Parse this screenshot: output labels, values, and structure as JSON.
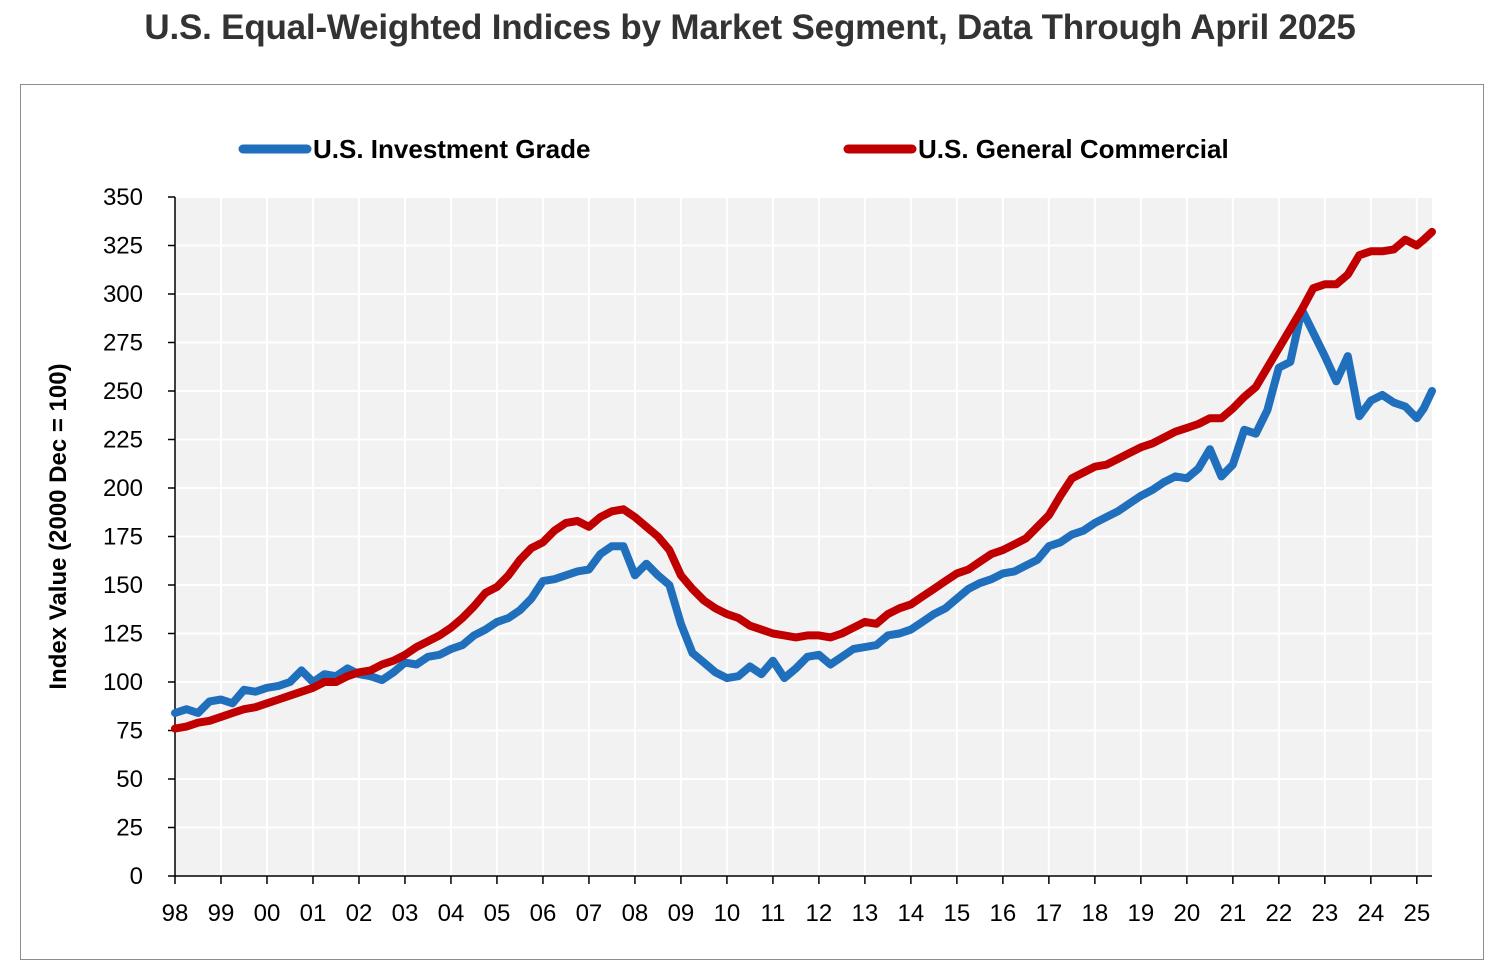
{
  "chart_data": {
    "type": "line",
    "title": "U.S. Equal-Weighted Indices by Market Segment, Data Through April 2025",
    "xlabel": "",
    "ylabel": "Index Value (2000 Dec = 100)",
    "ylim": [
      0,
      350
    ],
    "yticks": [
      0,
      25,
      50,
      75,
      100,
      125,
      150,
      175,
      200,
      225,
      250,
      275,
      300,
      325,
      350
    ],
    "xlim": [
      1998.0,
      2025.33
    ],
    "xtick_labels": [
      "98",
      "99",
      "00",
      "01",
      "02",
      "03",
      "04",
      "05",
      "06",
      "07",
      "08",
      "09",
      "10",
      "11",
      "12",
      "13",
      "14",
      "15",
      "16",
      "17",
      "18",
      "19",
      "20",
      "21",
      "22",
      "23",
      "24",
      "25"
    ],
    "grid": true,
    "legend_position": "top",
    "series": [
      {
        "name": "U.S. Investment Grade",
        "color": "#1f6fbd",
        "points": [
          [
            1998.0,
            84
          ],
          [
            1998.25,
            86
          ],
          [
            1998.5,
            84
          ],
          [
            1998.75,
            90
          ],
          [
            1999.0,
            91
          ],
          [
            1999.25,
            89
          ],
          [
            1999.5,
            96
          ],
          [
            1999.75,
            95
          ],
          [
            2000.0,
            97
          ],
          [
            2000.25,
            98
          ],
          [
            2000.5,
            100
          ],
          [
            2000.75,
            106
          ],
          [
            2001.0,
            100
          ],
          [
            2001.25,
            104
          ],
          [
            2001.5,
            103
          ],
          [
            2001.75,
            107
          ],
          [
            2002.0,
            104
          ],
          [
            2002.25,
            103
          ],
          [
            2002.5,
            101
          ],
          [
            2002.75,
            105
          ],
          [
            2003.0,
            110
          ],
          [
            2003.25,
            109
          ],
          [
            2003.5,
            113
          ],
          [
            2003.75,
            114
          ],
          [
            2004.0,
            117
          ],
          [
            2004.25,
            119
          ],
          [
            2004.5,
            124
          ],
          [
            2004.75,
            127
          ],
          [
            2005.0,
            131
          ],
          [
            2005.25,
            133
          ],
          [
            2005.5,
            137
          ],
          [
            2005.75,
            143
          ],
          [
            2006.0,
            152
          ],
          [
            2006.25,
            153
          ],
          [
            2006.5,
            155
          ],
          [
            2006.75,
            157
          ],
          [
            2007.0,
            158
          ],
          [
            2007.25,
            166
          ],
          [
            2007.5,
            170
          ],
          [
            2007.75,
            170
          ],
          [
            2008.0,
            155
          ],
          [
            2008.25,
            161
          ],
          [
            2008.5,
            155
          ],
          [
            2008.75,
            150
          ],
          [
            2009.0,
            130
          ],
          [
            2009.25,
            115
          ],
          [
            2009.5,
            110
          ],
          [
            2009.75,
            105
          ],
          [
            2010.0,
            102
          ],
          [
            2010.25,
            103
          ],
          [
            2010.5,
            108
          ],
          [
            2010.75,
            104
          ],
          [
            2011.0,
            111
          ],
          [
            2011.25,
            102
          ],
          [
            2011.5,
            107
          ],
          [
            2011.75,
            113
          ],
          [
            2012.0,
            114
          ],
          [
            2012.25,
            109
          ],
          [
            2012.5,
            113
          ],
          [
            2012.75,
            117
          ],
          [
            2013.0,
            118
          ],
          [
            2013.25,
            119
          ],
          [
            2013.5,
            124
          ],
          [
            2013.75,
            125
          ],
          [
            2014.0,
            127
          ],
          [
            2014.25,
            131
          ],
          [
            2014.5,
            135
          ],
          [
            2014.75,
            138
          ],
          [
            2015.0,
            143
          ],
          [
            2015.25,
            148
          ],
          [
            2015.5,
            151
          ],
          [
            2015.75,
            153
          ],
          [
            2016.0,
            156
          ],
          [
            2016.25,
            157
          ],
          [
            2016.5,
            160
          ],
          [
            2016.75,
            163
          ],
          [
            2017.0,
            170
          ],
          [
            2017.25,
            172
          ],
          [
            2017.5,
            176
          ],
          [
            2017.75,
            178
          ],
          [
            2018.0,
            182
          ],
          [
            2018.25,
            185
          ],
          [
            2018.5,
            188
          ],
          [
            2018.75,
            192
          ],
          [
            2019.0,
            196
          ],
          [
            2019.25,
            199
          ],
          [
            2019.5,
            203
          ],
          [
            2019.75,
            206
          ],
          [
            2020.0,
            205
          ],
          [
            2020.25,
            210
          ],
          [
            2020.5,
            220
          ],
          [
            2020.75,
            206
          ],
          [
            2021.0,
            212
          ],
          [
            2021.25,
            230
          ],
          [
            2021.5,
            228
          ],
          [
            2021.75,
            240
          ],
          [
            2022.0,
            262
          ],
          [
            2022.25,
            265
          ],
          [
            2022.5,
            292
          ],
          [
            2022.75,
            280
          ],
          [
            2023.0,
            268
          ],
          [
            2023.25,
            255
          ],
          [
            2023.5,
            268
          ],
          [
            2023.75,
            237
          ],
          [
            2024.0,
            245
          ],
          [
            2024.25,
            248
          ],
          [
            2024.5,
            244
          ],
          [
            2024.75,
            242
          ],
          [
            2025.0,
            236
          ],
          [
            2025.15,
            241
          ],
          [
            2025.33,
            250
          ]
        ]
      },
      {
        "name": "U.S. General Commercial",
        "color": "#c00000",
        "points": [
          [
            1998.0,
            76
          ],
          [
            1998.25,
            77
          ],
          [
            1998.5,
            79
          ],
          [
            1998.75,
            80
          ],
          [
            1999.0,
            82
          ],
          [
            1999.25,
            84
          ],
          [
            1999.5,
            86
          ],
          [
            1999.75,
            87
          ],
          [
            2000.0,
            89
          ],
          [
            2000.25,
            91
          ],
          [
            2000.5,
            93
          ],
          [
            2000.75,
            95
          ],
          [
            2001.0,
            97
          ],
          [
            2001.25,
            100
          ],
          [
            2001.5,
            100
          ],
          [
            2001.75,
            103
          ],
          [
            2002.0,
            105
          ],
          [
            2002.25,
            106
          ],
          [
            2002.5,
            109
          ],
          [
            2002.75,
            111
          ],
          [
            2003.0,
            114
          ],
          [
            2003.25,
            118
          ],
          [
            2003.5,
            121
          ],
          [
            2003.75,
            124
          ],
          [
            2004.0,
            128
          ],
          [
            2004.25,
            133
          ],
          [
            2004.5,
            139
          ],
          [
            2004.75,
            146
          ],
          [
            2005.0,
            149
          ],
          [
            2005.25,
            155
          ],
          [
            2005.5,
            163
          ],
          [
            2005.75,
            169
          ],
          [
            2006.0,
            172
          ],
          [
            2006.25,
            178
          ],
          [
            2006.5,
            182
          ],
          [
            2006.75,
            183
          ],
          [
            2007.0,
            180
          ],
          [
            2007.25,
            185
          ],
          [
            2007.5,
            188
          ],
          [
            2007.75,
            189
          ],
          [
            2008.0,
            185
          ],
          [
            2008.25,
            180
          ],
          [
            2008.5,
            175
          ],
          [
            2008.75,
            168
          ],
          [
            2009.0,
            155
          ],
          [
            2009.25,
            148
          ],
          [
            2009.5,
            142
          ],
          [
            2009.75,
            138
          ],
          [
            2010.0,
            135
          ],
          [
            2010.25,
            133
          ],
          [
            2010.5,
            129
          ],
          [
            2010.75,
            127
          ],
          [
            2011.0,
            125
          ],
          [
            2011.25,
            124
          ],
          [
            2011.5,
            123
          ],
          [
            2011.75,
            124
          ],
          [
            2012.0,
            124
          ],
          [
            2012.25,
            123
          ],
          [
            2012.5,
            125
          ],
          [
            2012.75,
            128
          ],
          [
            2013.0,
            131
          ],
          [
            2013.25,
            130
          ],
          [
            2013.5,
            135
          ],
          [
            2013.75,
            138
          ],
          [
            2014.0,
            140
          ],
          [
            2014.25,
            144
          ],
          [
            2014.5,
            148
          ],
          [
            2014.75,
            152
          ],
          [
            2015.0,
            156
          ],
          [
            2015.25,
            158
          ],
          [
            2015.5,
            162
          ],
          [
            2015.75,
            166
          ],
          [
            2016.0,
            168
          ],
          [
            2016.25,
            171
          ],
          [
            2016.5,
            174
          ],
          [
            2016.75,
            180
          ],
          [
            2017.0,
            186
          ],
          [
            2017.25,
            196
          ],
          [
            2017.5,
            205
          ],
          [
            2017.75,
            208
          ],
          [
            2018.0,
            211
          ],
          [
            2018.25,
            212
          ],
          [
            2018.5,
            215
          ],
          [
            2018.75,
            218
          ],
          [
            2019.0,
            221
          ],
          [
            2019.25,
            223
          ],
          [
            2019.5,
            226
          ],
          [
            2019.75,
            229
          ],
          [
            2020.0,
            231
          ],
          [
            2020.25,
            233
          ],
          [
            2020.5,
            236
          ],
          [
            2020.75,
            236
          ],
          [
            2021.0,
            241
          ],
          [
            2021.25,
            247
          ],
          [
            2021.5,
            252
          ],
          [
            2021.75,
            262
          ],
          [
            2022.0,
            272
          ],
          [
            2022.25,
            282
          ],
          [
            2022.5,
            292
          ],
          [
            2022.75,
            303
          ],
          [
            2023.0,
            305
          ],
          [
            2023.25,
            305
          ],
          [
            2023.5,
            310
          ],
          [
            2023.75,
            320
          ],
          [
            2024.0,
            322
          ],
          [
            2024.25,
            322
          ],
          [
            2024.5,
            323
          ],
          [
            2024.75,
            328
          ],
          [
            2025.0,
            325
          ],
          [
            2025.15,
            328
          ],
          [
            2025.33,
            332
          ]
        ]
      }
    ]
  }
}
